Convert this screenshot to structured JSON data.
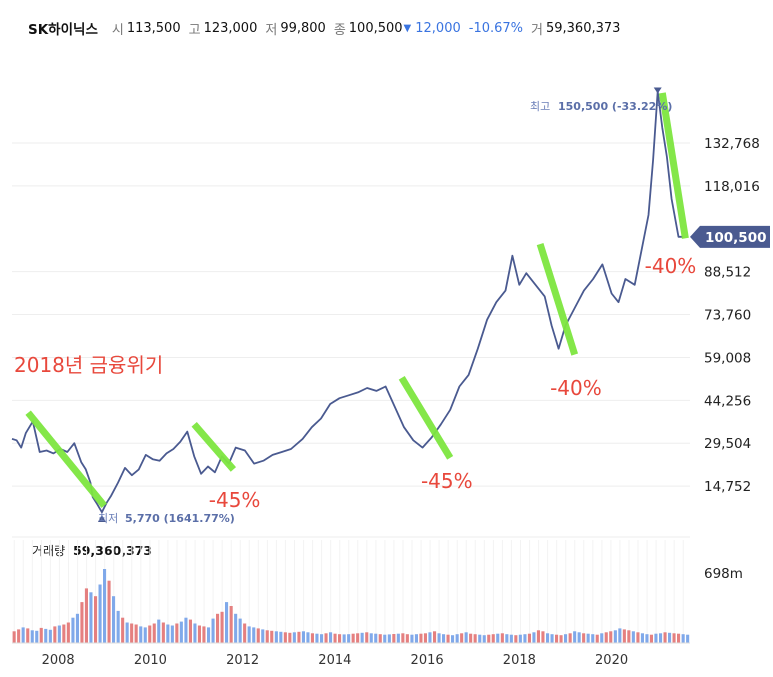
{
  "header": {
    "name": "SK하이닉스",
    "open_label": "시",
    "open": "113,500",
    "high_label": "고",
    "high": "123,000",
    "low_label": "저",
    "low": "99,800",
    "close_label": "종",
    "close": "100,500",
    "change": "12,000",
    "change_pct": "-10.67%",
    "volume_label": "거",
    "volume": "59,360,373"
  },
  "colors": {
    "line": "#4a5a90",
    "accent": "#3a74e0",
    "up": "#e06a6a",
    "down": "#6a9ae6",
    "highlight": "#7ee640",
    "annotation": "#e8483c",
    "price_tag": "#4a5a90"
  },
  "chart_data": [
    {
      "type": "line",
      "title": "",
      "x_range": [
        2007.0,
        2021.7
      ],
      "y_ticks": [
        14752,
        29504,
        44256,
        59008,
        73760,
        88512,
        118016,
        132768
      ],
      "y_tick_labels": [
        "14,752",
        "29,504",
        "44,256",
        "59,008",
        "73,760",
        "88,512",
        "118,016",
        "132,768"
      ],
      "x_ticks": [
        2008,
        2010,
        2012,
        2014,
        2016,
        2018,
        2020
      ],
      "x_tick_labels": [
        "2008",
        "2010",
        "2012",
        "2014",
        "2016",
        "2018",
        "2020"
      ],
      "series": [
        {
          "x": [
            2007.0,
            2007.1,
            2007.2,
            2007.3,
            2007.45,
            2007.6,
            2007.75,
            2007.9,
            2008.05,
            2008.2,
            2008.35,
            2008.5,
            2008.6,
            2008.7,
            2008.75,
            2008.85,
            2008.95,
            2009.05,
            2009.15,
            2009.3,
            2009.45,
            2009.6,
            2009.75,
            2009.9,
            2010.05,
            2010.2,
            2010.35,
            2010.5,
            2010.65,
            2010.8,
            2010.95,
            2011.1,
            2011.25,
            2011.4,
            2011.55,
            2011.7,
            2011.85,
            2012.05,
            2012.25,
            2012.45,
            2012.65,
            2012.85,
            2013.05,
            2013.3,
            2013.5,
            2013.7,
            2013.9,
            2014.1,
            2014.3,
            2014.5,
            2014.7,
            2014.9,
            2015.1,
            2015.3,
            2015.5,
            2015.7,
            2015.9,
            2016.1,
            2016.3,
            2016.5,
            2016.7,
            2016.9,
            2017.1,
            2017.3,
            2017.5,
            2017.7,
            2017.85,
            2018.0,
            2018.15,
            2018.35,
            2018.55,
            2018.7,
            2018.85,
            2019.0,
            2019.2,
            2019.4,
            2019.6,
            2019.8,
            2020.0,
            2020.15,
            2020.3,
            2020.5,
            2020.65,
            2020.8,
            2020.9,
            2021.0,
            2021.1,
            2021.2,
            2021.3,
            2021.45,
            2021.55
          ],
          "y": [
            31000,
            30500,
            28000,
            33000,
            37000,
            26500,
            27000,
            26000,
            27500,
            26500,
            29500,
            23000,
            20500,
            16000,
            11000,
            8500,
            5770,
            9000,
            11500,
            16000,
            21000,
            18500,
            20500,
            25500,
            24000,
            23500,
            26000,
            27500,
            30000,
            33500,
            25000,
            19000,
            21500,
            19500,
            25000,
            22500,
            28000,
            27000,
            22500,
            23500,
            25500,
            26500,
            27500,
            31000,
            35000,
            38000,
            43000,
            45000,
            46000,
            47000,
            48500,
            47500,
            49000,
            42000,
            35000,
            30500,
            28000,
            31500,
            36000,
            41000,
            49000,
            53000,
            62000,
            72000,
            78000,
            82000,
            94000,
            84000,
            88000,
            84000,
            80000,
            70000,
            62000,
            70000,
            76000,
            82000,
            86000,
            91000,
            81000,
            78000,
            86000,
            84000,
            96000,
            108000,
            127000,
            150500,
            138000,
            128000,
            113500,
            100500,
            100500
          ]
        }
      ],
      "markers": {
        "max": {
          "label": "최고",
          "value_text": "150,500 (-33.22%)",
          "x": 2021.0,
          "y": 150500
        },
        "min": {
          "label": "최저",
          "value_text": "5,770 (1641.77%)",
          "x": 2008.95,
          "y": 5770
        }
      },
      "last_price": {
        "value": 100500,
        "label": "100,500"
      },
      "annotations": [
        {
          "text": "2018년 금융위기"
        },
        {
          "text": "-45%",
          "x": 2011.7,
          "y": 14500
        },
        {
          "text": "-45%",
          "x": 2016.3,
          "y": 21000
        },
        {
          "text": "-40%",
          "x": 2019.1,
          "y": 53000
        },
        {
          "text": "-40%",
          "x": 2021.15,
          "y": 95000
        }
      ],
      "highlight_segments": [
        {
          "x1": 2007.35,
          "y1": 40000,
          "x2": 2009.0,
          "y2": 8000
        },
        {
          "x1": 2010.95,
          "y1": 36000,
          "x2": 2011.8,
          "y2": 20500
        },
        {
          "x1": 2015.45,
          "y1": 52000,
          "x2": 2016.5,
          "y2": 24500
        },
        {
          "x1": 2018.45,
          "y1": 98000,
          "x2": 2019.2,
          "y2": 60000
        },
        {
          "x1": 2021.1,
          "y1": 150000,
          "x2": 2021.6,
          "y2": 100000
        }
      ]
    },
    {
      "type": "bar",
      "title": "거래량",
      "title_value": "59,360,373",
      "y_tick_labels": [
        "698m"
      ],
      "y_ticks_m": [
        698
      ],
      "values_m": [
        120,
        140,
        160,
        150,
        130,
        125,
        155,
        145,
        135,
        170,
        180,
        190,
        210,
        260,
        300,
        420,
        560,
        520,
        480,
        600,
        760,
        640,
        480,
        330,
        260,
        210,
        200,
        190,
        170,
        160,
        180,
        200,
        240,
        210,
        190,
        180,
        200,
        220,
        260,
        240,
        200,
        180,
        170,
        160,
        250,
        300,
        320,
        420,
        380,
        300,
        250,
        200,
        170,
        160,
        150,
        140,
        130,
        125,
        120,
        115,
        110,
        105,
        110,
        115,
        120,
        110,
        100,
        95,
        90,
        100,
        110,
        95,
        90,
        88,
        90,
        95,
        100,
        105,
        110,
        100,
        95,
        90,
        85,
        88,
        92,
        95,
        100,
        90,
        85,
        90,
        95,
        100,
        110,
        120,
        100,
        90,
        85,
        80,
        90,
        100,
        110,
        95,
        90,
        85,
        80,
        85,
        90,
        95,
        100,
        90,
        85,
        80,
        85,
        90,
        95,
        110,
        130,
        120,
        100,
        90,
        85,
        80,
        90,
        100,
        120,
        110,
        100,
        95,
        90,
        85,
        100,
        110,
        120,
        130,
        150,
        140,
        130,
        120,
        110,
        100,
        90,
        85,
        95,
        100,
        110,
        105,
        100,
        95,
        90,
        85
      ]
    }
  ]
}
